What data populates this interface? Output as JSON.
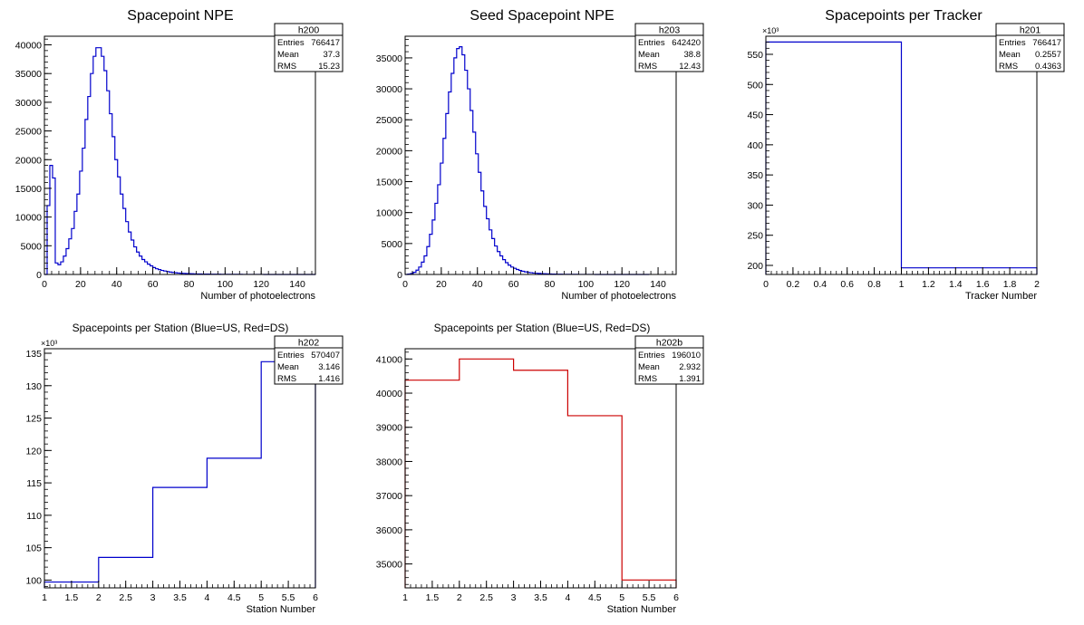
{
  "chart_data": [
    {
      "type": "bar",
      "id": "h200",
      "title": "Spacepoint NPE",
      "xlabel": "Number of photoelectrons",
      "ylabel": "",
      "xlim": [
        0,
        150
      ],
      "ylim": [
        0,
        41500
      ],
      "xticks": [
        0,
        20,
        40,
        60,
        80,
        100,
        120,
        140
      ],
      "yticks": [
        0,
        5000,
        10000,
        15000,
        20000,
        25000,
        30000,
        35000,
        40000
      ],
      "y_multiplier": "",
      "line_color": "#0000cc",
      "stats": {
        "name": "h200",
        "entries": "766417",
        "mean": "37.3",
        "rms": "15.23"
      },
      "stats_labels": {
        "entries": "Entries",
        "mean": "Mean",
        "rms": "RMS"
      },
      "bins": {
        "edges_start": 0,
        "width": 1.5,
        "values": [
          0,
          12000,
          19000,
          16800,
          2000,
          1700,
          2200,
          3200,
          4500,
          6200,
          8000,
          11000,
          14000,
          18000,
          22000,
          27000,
          31000,
          35000,
          38000,
          39500,
          39500,
          38000,
          35500,
          32000,
          28000,
          24000,
          20000,
          17000,
          14000,
          11500,
          9200,
          7400,
          6000,
          4800,
          3900,
          3200,
          2600,
          2200,
          1800,
          1500,
          1200,
          1000,
          850,
          700,
          600,
          500,
          420,
          350,
          300,
          250,
          220,
          190,
          160,
          140,
          120,
          100,
          90,
          80,
          70,
          60,
          55,
          50,
          45,
          40,
          36,
          32,
          28,
          25,
          22,
          20,
          18,
          16,
          14,
          12,
          11,
          10,
          9,
          8,
          7,
          6,
          6,
          5,
          5,
          4,
          4,
          3,
          3,
          3,
          2,
          2,
          2,
          2,
          1,
          1,
          1,
          1,
          1,
          1,
          1,
          1
        ]
      }
    },
    {
      "type": "bar",
      "id": "h203",
      "title": "Seed Spacepoint NPE",
      "xlabel": "Number of photoelectrons",
      "ylabel": "",
      "xlim": [
        0,
        150
      ],
      "ylim": [
        0,
        38500
      ],
      "xticks": [
        0,
        20,
        40,
        60,
        80,
        100,
        120,
        140
      ],
      "yticks": [
        0,
        5000,
        10000,
        15000,
        20000,
        25000,
        30000,
        35000
      ],
      "y_multiplier": "",
      "line_color": "#0000cc",
      "stats": {
        "name": "h203",
        "entries": "642420",
        "mean": "38.8",
        "rms": "12.43"
      },
      "stats_labels": {
        "entries": "Entries",
        "mean": "Mean",
        "rms": "RMS"
      },
      "bins": {
        "edges_start": 0,
        "width": 1.5,
        "values": [
          0,
          50,
          150,
          350,
          700,
          1200,
          2000,
          3000,
          4500,
          6500,
          8800,
          11500,
          14500,
          18000,
          22000,
          26000,
          29500,
          32500,
          35000,
          36500,
          36800,
          35500,
          33000,
          30000,
          26500,
          23000,
          19500,
          16500,
          13500,
          11000,
          9000,
          7200,
          5800,
          4600,
          3700,
          3000,
          2400,
          1900,
          1500,
          1200,
          1000,
          800,
          650,
          520,
          420,
          340,
          280,
          230,
          190,
          160,
          130,
          110,
          90,
          75,
          62,
          52,
          44,
          37,
          31,
          26,
          22,
          19,
          16,
          14,
          12,
          10,
          9,
          8,
          7,
          6,
          5,
          5,
          4,
          4,
          3,
          3,
          3,
          2,
          2,
          2,
          2,
          1,
          1,
          1,
          1,
          1,
          1,
          1,
          1,
          1
        ]
      }
    },
    {
      "type": "bar",
      "id": "h201",
      "title": "Spacepoints per Tracker",
      "xlabel": "Tracker Number",
      "ylabel": "",
      "xlim": [
        0,
        2
      ],
      "ylim": [
        185,
        580
      ],
      "xticks": [
        0,
        0.2,
        0.4,
        0.6,
        0.8,
        1,
        1.2,
        1.4,
        1.6,
        1.8,
        2
      ],
      "yticks": [
        200,
        250,
        300,
        350,
        400,
        450,
        500,
        550
      ],
      "y_multiplier": "×10³",
      "line_color": "#0000cc",
      "stats": {
        "name": "h201",
        "entries": "766417",
        "mean": "0.2557",
        "rms": "0.4363"
      },
      "stats_labels": {
        "entries": "Entries",
        "mean": "Mean",
        "rms": "RMS"
      },
      "bins": {
        "edges": [
          0,
          1,
          2
        ],
        "values": [
          570.4,
          196.0
        ]
      }
    },
    {
      "type": "bar",
      "id": "h202",
      "title": "Spacepoints per Station (Blue=US, Red=DS)",
      "xlabel": "Station Number",
      "ylabel": "",
      "xlim": [
        1,
        6
      ],
      "ylim": [
        98.8,
        135.7
      ],
      "xticks": [
        1,
        1.5,
        2,
        2.5,
        3,
        3.5,
        4,
        4.5,
        5,
        5.5,
        6
      ],
      "yticks": [
        100,
        105,
        110,
        115,
        120,
        125,
        130,
        135
      ],
      "y_multiplier": "×10³",
      "line_color": "#0000cc",
      "stats": {
        "name": "h202",
        "entries": "570407",
        "mean": "3.146",
        "rms": "1.416"
      },
      "stats_labels": {
        "entries": "Entries",
        "mean": "Mean",
        "rms": "RMS"
      },
      "bins": {
        "edges": [
          1,
          2,
          3,
          4,
          5,
          6
        ],
        "values": [
          99.7,
          103.5,
          114.3,
          118.8,
          133.7
        ]
      }
    },
    {
      "type": "bar",
      "id": "h202b",
      "title": "Spacepoints per Station (Blue=US, Red=DS)",
      "xlabel": "Station Number",
      "ylabel": "",
      "xlim": [
        1,
        6
      ],
      "ylim": [
        34300,
        41300
      ],
      "xticks": [
        1,
        1.5,
        2,
        2.5,
        3,
        3.5,
        4,
        4.5,
        5,
        5.5,
        6
      ],
      "yticks": [
        35000,
        36000,
        37000,
        38000,
        39000,
        40000,
        41000
      ],
      "y_multiplier": "",
      "line_color": "#cc0000",
      "stats": {
        "name": "h202b",
        "entries": "196010",
        "mean": "2.932",
        "rms": "1.391"
      },
      "stats_labels": {
        "entries": "Entries",
        "mean": "Mean",
        "rms": "RMS"
      },
      "bins": {
        "edges": [
          1,
          2,
          3,
          4,
          5,
          6
        ],
        "values": [
          40380,
          41000,
          40670,
          39340,
          34530
        ]
      }
    }
  ]
}
